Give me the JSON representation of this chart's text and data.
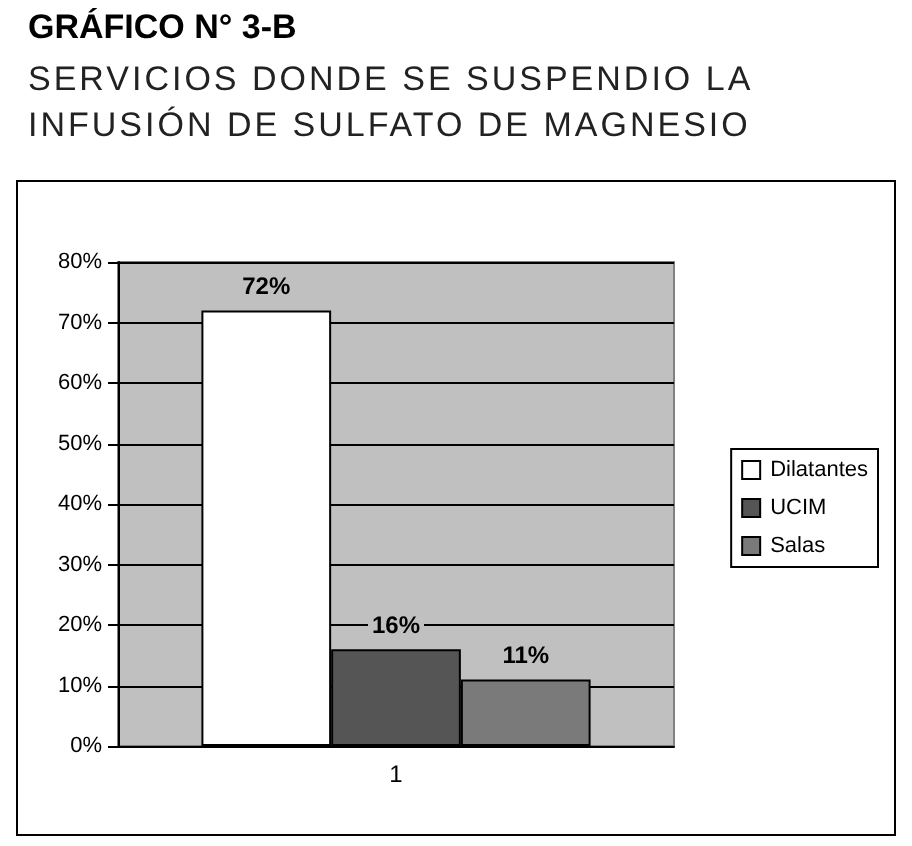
{
  "chart_data": {
    "type": "bar",
    "title": "GRÁFICO N° 3-B",
    "subtitle": "SERVICIOS DONDE SE SUSPENDIO LA INFUSIÓN DE SULFATO DE MAGNESIO",
    "categories": [
      "1"
    ],
    "series": [
      {
        "name": "Dilatantes",
        "color": "#ffffff",
        "values": [
          72
        ],
        "value_labels": [
          "72%"
        ]
      },
      {
        "name": "UCIM",
        "color": "#555555",
        "values": [
          16
        ],
        "value_labels": [
          "16%"
        ]
      },
      {
        "name": "Salas",
        "color": "#7a7a7a",
        "values": [
          11
        ],
        "value_labels": [
          "11%"
        ]
      }
    ],
    "ylim": [
      0,
      80
    ],
    "yticks": [
      {
        "value": 0,
        "label": "0%"
      },
      {
        "value": 10,
        "label": "10%"
      },
      {
        "value": 20,
        "label": "20%"
      },
      {
        "value": 30,
        "label": "30%"
      },
      {
        "value": 40,
        "label": "40%"
      },
      {
        "value": 50,
        "label": "50%"
      },
      {
        "value": 60,
        "label": "60%"
      },
      {
        "value": 70,
        "label": "70%"
      },
      {
        "value": 80,
        "label": "80%"
      }
    ],
    "grid": "y",
    "legend": "right"
  }
}
